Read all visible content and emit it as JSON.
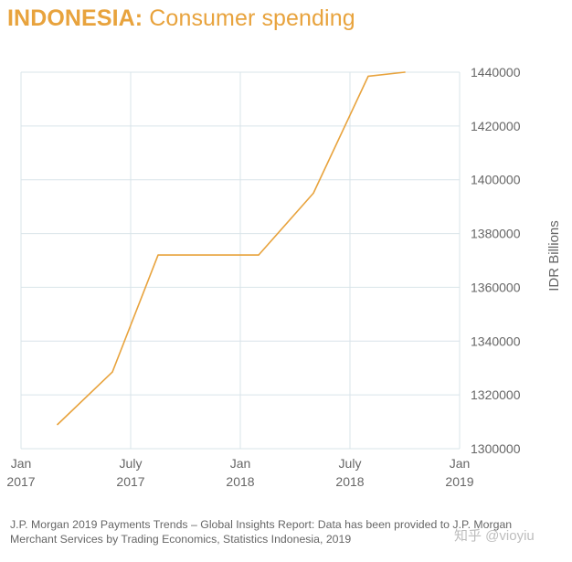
{
  "title": {
    "strong": "INDONESIA:",
    "rest": " Consumer spending"
  },
  "chart_data": {
    "type": "line",
    "title": "INDONESIA: Consumer spending",
    "xlabel": "",
    "ylabel": "IDR Billions",
    "ylim": [
      1300000,
      1440000
    ],
    "yticks": [
      1300000,
      1320000,
      1340000,
      1360000,
      1380000,
      1400000,
      1420000,
      1440000
    ],
    "ytick_labels": [
      "1300000",
      "1320000",
      "1340000",
      "1360000",
      "1380000",
      "1400000",
      "1420000",
      "1440000"
    ],
    "xlim": [
      0,
      24
    ],
    "xticks": [
      {
        "value": 0,
        "line1": "Jan",
        "line2": "2017"
      },
      {
        "value": 6,
        "line1": "July",
        "line2": "2017"
      },
      {
        "value": 12,
        "line1": "Jan",
        "line2": "2018"
      },
      {
        "value": 18,
        "line1": "July",
        "line2": "2018"
      },
      {
        "value": 24,
        "line1": "Jan",
        "line2": "2019"
      }
    ],
    "series": [
      {
        "name": "Consumer spending",
        "color": "#e8a33d",
        "x": [
          2,
          5,
          7.5,
          13,
          16,
          19,
          21
        ],
        "values": [
          1309000,
          1328500,
          1372000,
          1372000,
          1395000,
          1438500,
          1440000
        ]
      }
    ],
    "grid": true
  },
  "source": "J.P. Morgan 2019 Payments Trends – Global Insights Report: Data has been provided to J.P. Morgan Merchant Services by Trading Economics, Statistics Indonesia, 2019",
  "watermark": "知乎 @vioyiu",
  "colors": {
    "accent": "#e8a33d",
    "grid": "#d9e4ea",
    "text": "#666666"
  }
}
